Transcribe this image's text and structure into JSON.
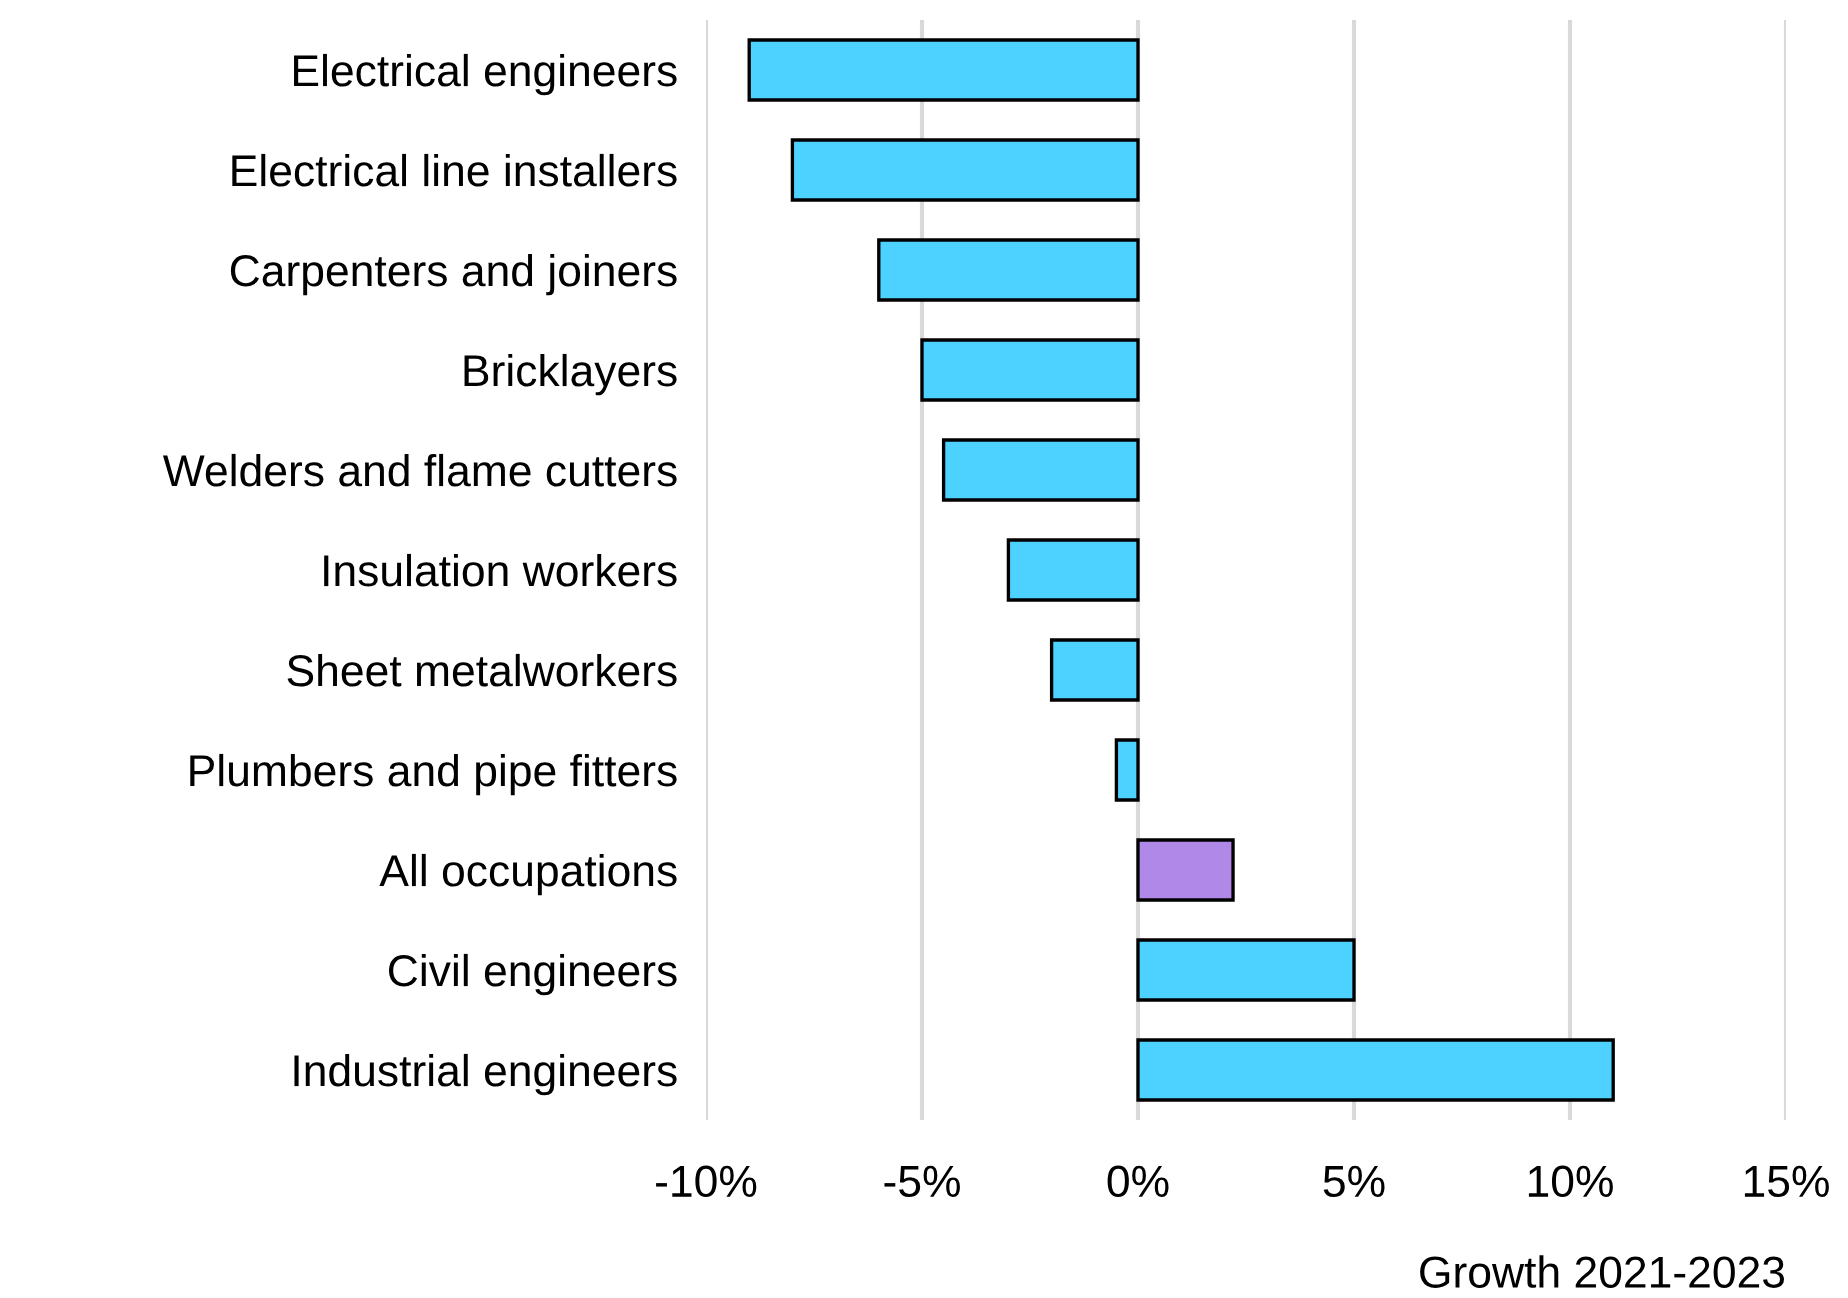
{
  "chart_data": {
    "type": "bar",
    "orientation": "horizontal",
    "xlabel": "Growth 2021-2023",
    "categories": [
      "Electrical engineers",
      "Electrical line installers",
      "Carpenters and joiners",
      "Bricklayers",
      "Welders and flame cutters",
      "Insulation workers",
      "Sheet metalworkers",
      "Plumbers and pipe fitters",
      "All occupations",
      "Civil engineers",
      "Industrial engineers"
    ],
    "values": [
      -9,
      -8,
      -6,
      -5,
      -4.5,
      -3,
      -2,
      -0.5,
      2.2,
      5,
      11
    ],
    "colors": [
      "#4dd2ff",
      "#4dd2ff",
      "#4dd2ff",
      "#4dd2ff",
      "#4dd2ff",
      "#4dd2ff",
      "#4dd2ff",
      "#4dd2ff",
      "#b088e8",
      "#4dd2ff",
      "#4dd2ff"
    ],
    "xlim": [
      -10,
      15
    ],
    "xticks": [
      {
        "value": -10,
        "label": "-10%"
      },
      {
        "value": -5,
        "label": "-5%"
      },
      {
        "value": 0,
        "label": "0%"
      },
      {
        "value": 5,
        "label": "5%"
      },
      {
        "value": 10,
        "label": "10%"
      },
      {
        "value": 15,
        "label": "15%"
      }
    ],
    "grid": "x",
    "legend": false
  }
}
